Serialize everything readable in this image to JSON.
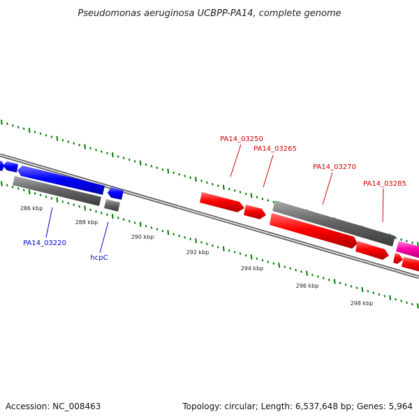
{
  "title": "Pseudomonas aeruginosa UCBPP-PA14, complete genome",
  "footer": {
    "accession": "Accession: NC_008463",
    "summary": "Topology: circular; Length: 6,537,648 bp; Genes: 5,964"
  },
  "colors": {
    "strand_plus": "#0000ff",
    "strand_minus": "#ff0000",
    "neutral": "#666666",
    "highlight": "#ff00aa",
    "ticks": "#007700",
    "label_blue": "#0000cc",
    "label_red": "#cc0000"
  },
  "scale_labels": [
    "286 kbp",
    "288 kbp",
    "290 kbp",
    "292 kbp",
    "294 kbp",
    "296 kbp",
    "298 kbp"
  ],
  "gene_labels": [
    "PA14_03220",
    "hcpC",
    "PA14_03250",
    "PA14_03265",
    "PA14_03270",
    "PA14_03285"
  ]
}
